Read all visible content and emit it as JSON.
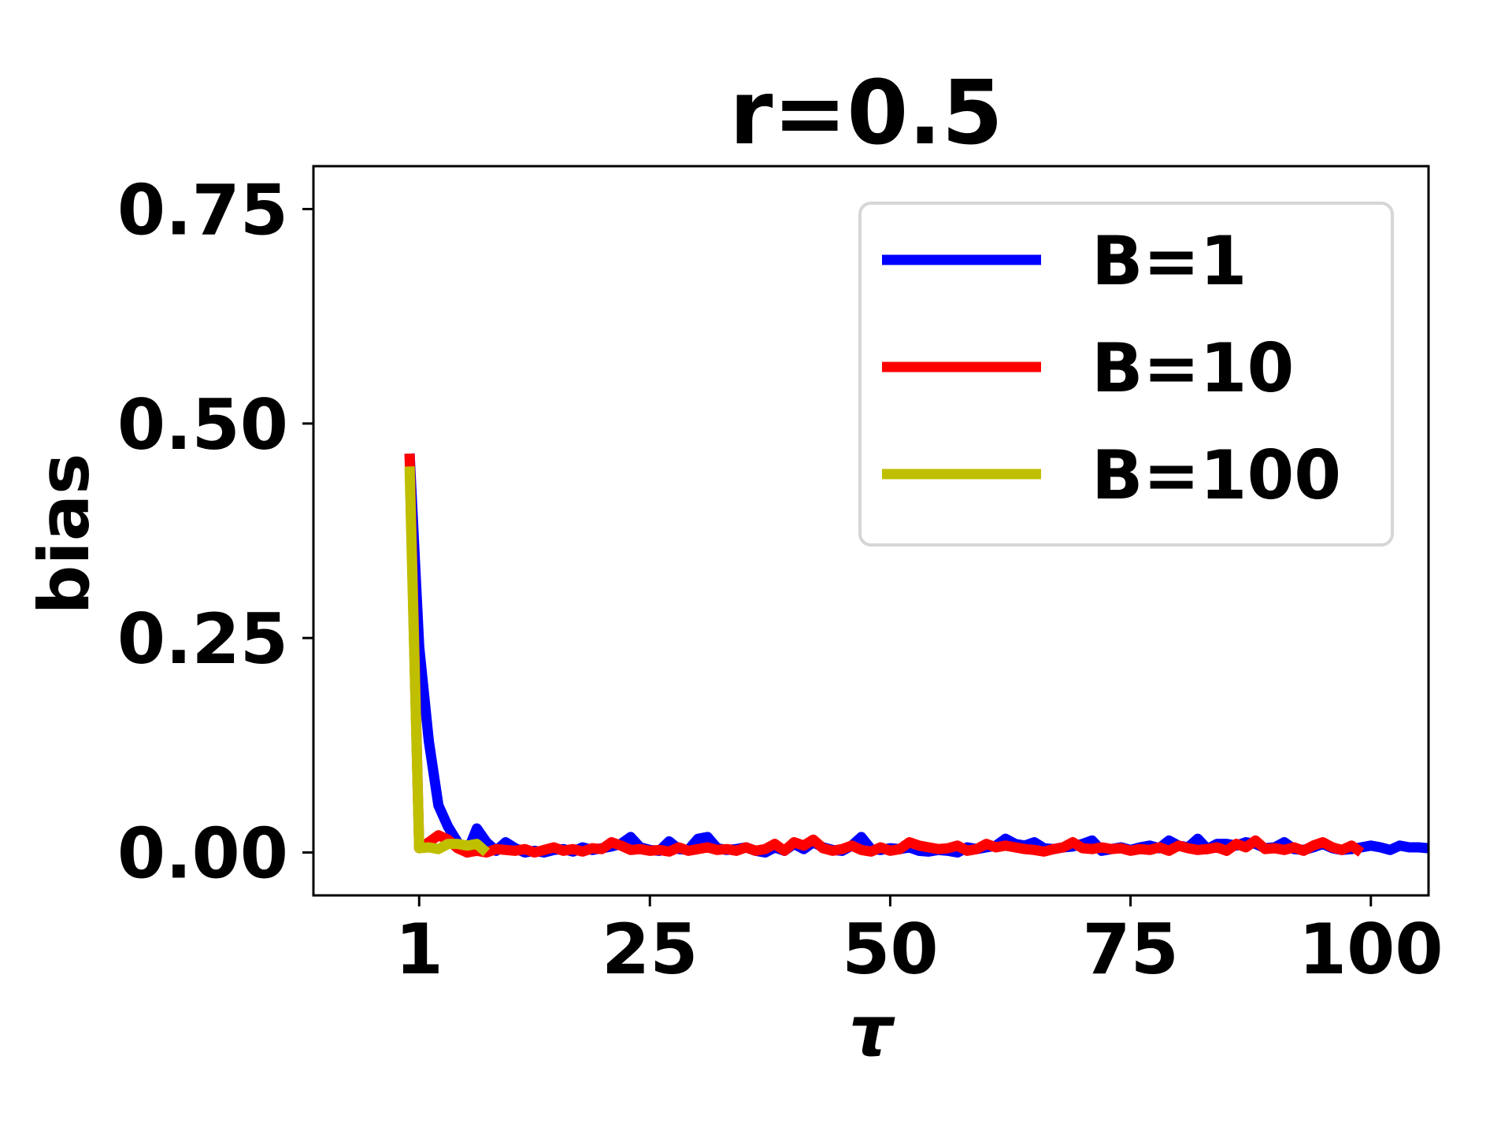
{
  "chart_data": {
    "type": "line",
    "title": "r=0.5",
    "xlabel": "τ",
    "ylabel": "bias",
    "xlim": [
      -10,
      106
    ],
    "ylim": [
      -0.05,
      0.8
    ],
    "xticks": [
      1,
      25,
      50,
      75,
      100
    ],
    "xtick_labels": [
      "1",
      "25",
      "50",
      "75",
      "100"
    ],
    "yticks": [
      0.0,
      0.25,
      0.5,
      0.75
    ],
    "ytick_labels": [
      "0.00",
      "0.25",
      "0.50",
      "0.75"
    ],
    "grid": false,
    "legend_position": "top-right",
    "series": [
      {
        "name": "B=1",
        "color": "#0000ff",
        "x": [
          0,
          1,
          2,
          3,
          4,
          5,
          6,
          7,
          8,
          9,
          10,
          11,
          12,
          13,
          14,
          15,
          16,
          17,
          18,
          19,
          20,
          21,
          22,
          23,
          24,
          25,
          26,
          27,
          28,
          29,
          30,
          31,
          32,
          33,
          34,
          35,
          36,
          37,
          38,
          39,
          40,
          41,
          42,
          43,
          44,
          45,
          46,
          47,
          48,
          49,
          50,
          51,
          52,
          53,
          54,
          55,
          56,
          57,
          58,
          59,
          60,
          61,
          62,
          63,
          64,
          65,
          66,
          67,
          68,
          69,
          70,
          71,
          72,
          73,
          74,
          75,
          76,
          77,
          78,
          79,
          80,
          81,
          82,
          83,
          84,
          85,
          86,
          87,
          88,
          89,
          90,
          91,
          92,
          93,
          94,
          95,
          96,
          97,
          98,
          99,
          100,
          101,
          102,
          103,
          104,
          105,
          106
        ],
        "y": [
          0.465,
          0.24,
          0.13,
          0.055,
          0.03,
          0.012,
          0.0,
          0.028,
          0.012,
          0.002,
          0.012,
          0.005,
          0.0,
          0.002,
          0.0,
          0.003,
          0.004,
          0.001,
          0.006,
          0.003,
          0.005,
          0.007,
          0.01,
          0.018,
          0.006,
          0.003,
          0.002,
          0.013,
          0.004,
          0.003,
          0.016,
          0.018,
          0.005,
          0.003,
          0.004,
          0.006,
          0.002,
          0.0,
          0.006,
          0.002,
          0.01,
          0.004,
          0.012,
          0.006,
          0.003,
          0.002,
          0.008,
          0.018,
          0.004,
          0.003,
          0.005,
          0.004,
          0.006,
          0.002,
          0.001,
          0.003,
          0.002,
          0.0,
          0.006,
          0.004,
          0.006,
          0.008,
          0.016,
          0.01,
          0.008,
          0.012,
          0.005,
          0.004,
          0.006,
          0.007,
          0.01,
          0.014,
          0.002,
          0.004,
          0.006,
          0.003,
          0.006,
          0.008,
          0.005,
          0.014,
          0.008,
          0.006,
          0.016,
          0.004,
          0.01,
          0.01,
          0.008,
          0.012,
          0.01,
          0.005,
          0.006,
          0.012,
          0.004,
          0.003,
          0.006,
          0.01,
          0.005,
          0.003,
          0.004,
          0.006,
          0.008,
          0.006,
          0.003,
          0.008,
          0.006,
          0.006,
          0.005
        ]
      },
      {
        "name": "B=10",
        "color": "#ff0000",
        "x": [
          0,
          1,
          2,
          3,
          4,
          5,
          6,
          7,
          8,
          9,
          10,
          11,
          12,
          13,
          14,
          15,
          16,
          17,
          18,
          19,
          20,
          21,
          22,
          23,
          24,
          25,
          26,
          27,
          28,
          29,
          30,
          31,
          32,
          33,
          34,
          35,
          36,
          37,
          38,
          39,
          40,
          41,
          42,
          43,
          44,
          45,
          46,
          47,
          48,
          49,
          50,
          51,
          52,
          53,
          54,
          55,
          56,
          57,
          58,
          59,
          60,
          61,
          62,
          63,
          64,
          65,
          66,
          67,
          68,
          69,
          70,
          71,
          72,
          73,
          74,
          75,
          76,
          77,
          78,
          79,
          80,
          81,
          82,
          83,
          84,
          85,
          86,
          87,
          88,
          89,
          90,
          91,
          92,
          93,
          94,
          95,
          96,
          97,
          98,
          99
        ],
        "y": [
          0.465,
          0.005,
          0.012,
          0.02,
          0.015,
          0.005,
          0.0,
          0.002,
          0.0,
          0.004,
          0.003,
          0.002,
          0.004,
          0.0,
          0.003,
          0.006,
          0.002,
          0.004,
          0.001,
          0.005,
          0.004,
          0.012,
          0.008,
          0.003,
          0.004,
          0.002,
          0.003,
          0.001,
          0.006,
          0.002,
          0.004,
          0.006,
          0.003,
          0.004,
          0.002,
          0.006,
          0.002,
          0.004,
          0.01,
          0.002,
          0.012,
          0.008,
          0.015,
          0.005,
          0.002,
          0.004,
          0.008,
          0.003,
          0.001,
          0.006,
          0.002,
          0.004,
          0.012,
          0.008,
          0.006,
          0.004,
          0.005,
          0.008,
          0.002,
          0.004,
          0.01,
          0.006,
          0.008,
          0.006,
          0.004,
          0.003,
          0.001,
          0.004,
          0.006,
          0.012,
          0.005,
          0.004,
          0.006,
          0.004,
          0.005,
          0.002,
          0.004,
          0.003,
          0.006,
          0.002,
          0.008,
          0.005,
          0.003,
          0.004,
          0.006,
          0.002,
          0.01,
          0.006,
          0.014,
          0.004,
          0.005,
          0.003,
          0.006,
          0.002,
          0.008,
          0.012,
          0.006,
          0.003,
          0.008,
          0.0
        ]
      },
      {
        "name": "B=100",
        "color": "#bfbf00",
        "x": [
          0,
          1,
          2,
          3,
          4,
          5,
          6,
          7,
          8
        ],
        "y": [
          0.45,
          0.005,
          0.006,
          0.004,
          0.01,
          0.01,
          0.008,
          0.01,
          0.0
        ]
      }
    ]
  }
}
